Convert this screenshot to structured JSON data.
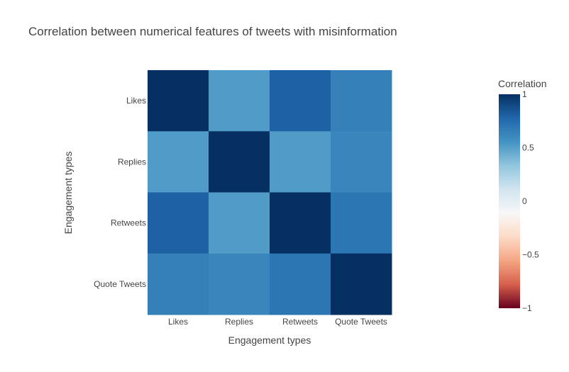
{
  "chart_data": {
    "type": "heatmap",
    "title": "Correlation between numerical features of tweets with misinformation",
    "xlabel": "Engagement types",
    "ylabel": "Engagement types",
    "x_categories": [
      "Likes",
      "Replies",
      "Retweets",
      "Quote Tweets"
    ],
    "y_categories": [
      "Likes",
      "Replies",
      "Retweets",
      "Quote Tweets"
    ],
    "z": [
      [
        1.0,
        0.52,
        0.8,
        0.65
      ],
      [
        0.52,
        1.0,
        0.52,
        0.62
      ],
      [
        0.8,
        0.52,
        1.0,
        0.7
      ],
      [
        0.65,
        0.62,
        0.7,
        1.0
      ]
    ],
    "zmin": -1,
    "zmax": 1,
    "colorscale": "RdBu",
    "colorbar": {
      "title": "Correlation",
      "ticks": [
        1,
        0.5,
        0,
        -0.5,
        -1
      ],
      "tick_labels": [
        "1",
        "0.5",
        "0",
        "−0.5",
        "−1"
      ]
    },
    "colors": {
      "stops": [
        "#67001f",
        "#d6604d",
        "#f4a582",
        "#fddbc7",
        "#f7f7f7",
        "#d1e5f0",
        "#92c5de",
        "#4393c3",
        "#2166ac",
        "#053061"
      ]
    }
  }
}
